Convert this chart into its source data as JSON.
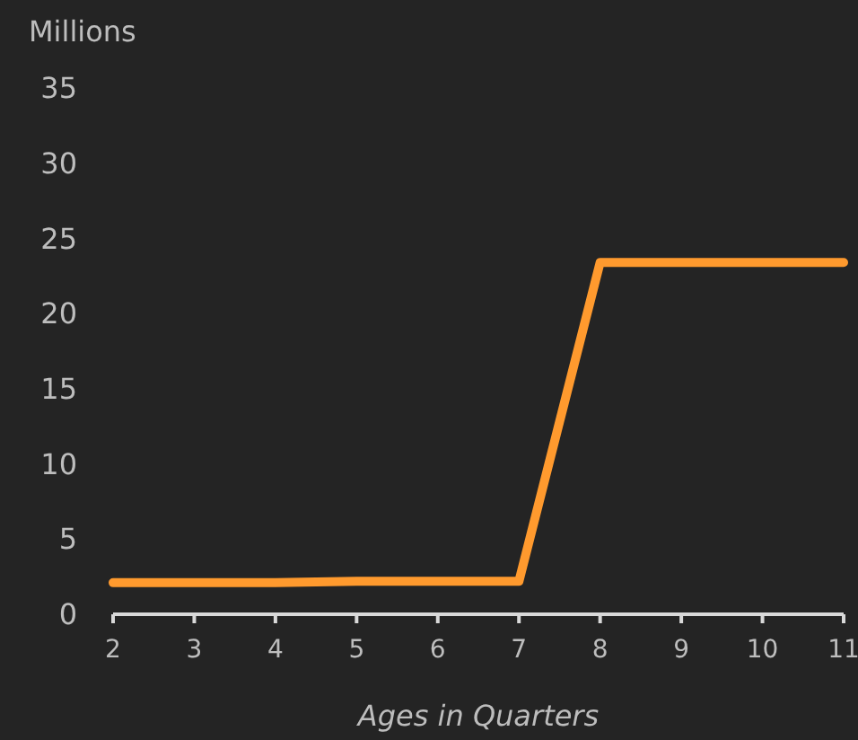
{
  "chart_data": {
    "type": "line",
    "ylabel": "Millions",
    "xlabel": "Ages in Quarters",
    "x": [
      2,
      3,
      4,
      5,
      6,
      7,
      8,
      9,
      10,
      11
    ],
    "series": [
      {
        "color": "#ff9a2e",
        "values": [
          2.1,
          2.1,
          2.1,
          2.2,
          2.2,
          2.2,
          23.4,
          23.4,
          23.4,
          23.4
        ]
      }
    ],
    "xlim": [
      2,
      11
    ],
    "xticks": [
      2,
      3,
      4,
      5,
      6,
      7,
      8,
      9,
      10,
      11
    ],
    "ylim": [
      0,
      35
    ],
    "yticks": [
      0,
      5,
      10,
      15,
      20,
      25,
      30,
      35
    ],
    "grid": false,
    "marker": "none",
    "line_style": "solid"
  }
}
